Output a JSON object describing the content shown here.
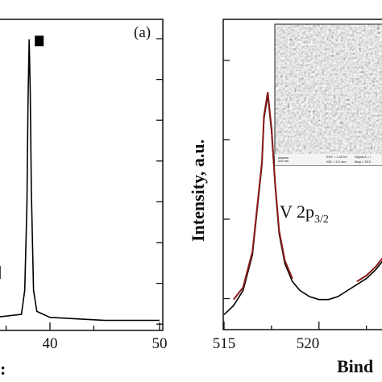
{
  "chart_data": [
    {
      "type": "line",
      "panel_label": "(a)",
      "xlim": [
        25,
        50
      ],
      "x_ticks": [
        "40",
        "50"
      ],
      "axis_label_partial": ":",
      "marker_peak": {
        "x": 38.1,
        "y": 0.97
      },
      "series": [
        {
          "x": [
            25,
            30,
            35,
            37.4,
            37.7,
            37.9,
            38.0,
            38.1,
            38.2,
            38.3,
            38.5,
            38.8,
            40,
            45,
            50
          ],
          "y": [
            0.02,
            0.02,
            0.03,
            0.04,
            0.12,
            0.4,
            0.75,
            0.95,
            0.78,
            0.45,
            0.12,
            0.05,
            0.03,
            0.02,
            0.02
          ]
        }
      ]
    },
    {
      "type": "line",
      "xlim": [
        515,
        524
      ],
      "x_ticks": [
        "515",
        "520"
      ],
      "xlabel": "Bind",
      "ylabel": "Intensity,  a.u.",
      "annotation": "V 2p",
      "annotation_sub": "3/2",
      "series": [
        {
          "x": [
            515,
            515.5,
            516,
            516.5,
            517,
            517.1,
            517.3,
            517.5,
            517.7,
            517.9,
            518.2,
            518.6,
            519,
            519.5,
            520,
            520.5,
            521,
            521.5,
            522,
            522.5,
            523,
            523.5,
            524
          ],
          "y": [
            0.05,
            0.08,
            0.13,
            0.25,
            0.55,
            0.7,
            0.78,
            0.66,
            0.47,
            0.32,
            0.22,
            0.16,
            0.13,
            0.11,
            0.1,
            0.1,
            0.11,
            0.13,
            0.15,
            0.17,
            0.2,
            0.24,
            0.3
          ]
        },
        {
          "color": "#8b1a1a",
          "x": [
            515.5,
            516,
            516.5,
            517,
            517.1,
            517.3,
            517.5,
            517.7,
            517.9,
            518.2,
            518.6
          ],
          "y": [
            0.1,
            0.14,
            0.26,
            0.56,
            0.71,
            0.79,
            0.67,
            0.48,
            0.33,
            0.23,
            0.17
          ]
        },
        {
          "color": "#8b1a1a",
          "x": [
            522,
            522.5,
            523,
            523.5,
            524
          ],
          "y": [
            0.16,
            0.18,
            0.21,
            0.25,
            0.31
          ]
        }
      ]
    }
  ],
  "inset": {
    "scale_bar": "200 nm",
    "line1": "EHT = 1.00 kV",
    "line2": "WD = 3.4 mm",
    "line3": "Signal A = I",
    "line4": "Mag = 30.0"
  },
  "colors": {
    "axis": "#111111",
    "data": "#000000",
    "fit": "#8b1a1a"
  }
}
